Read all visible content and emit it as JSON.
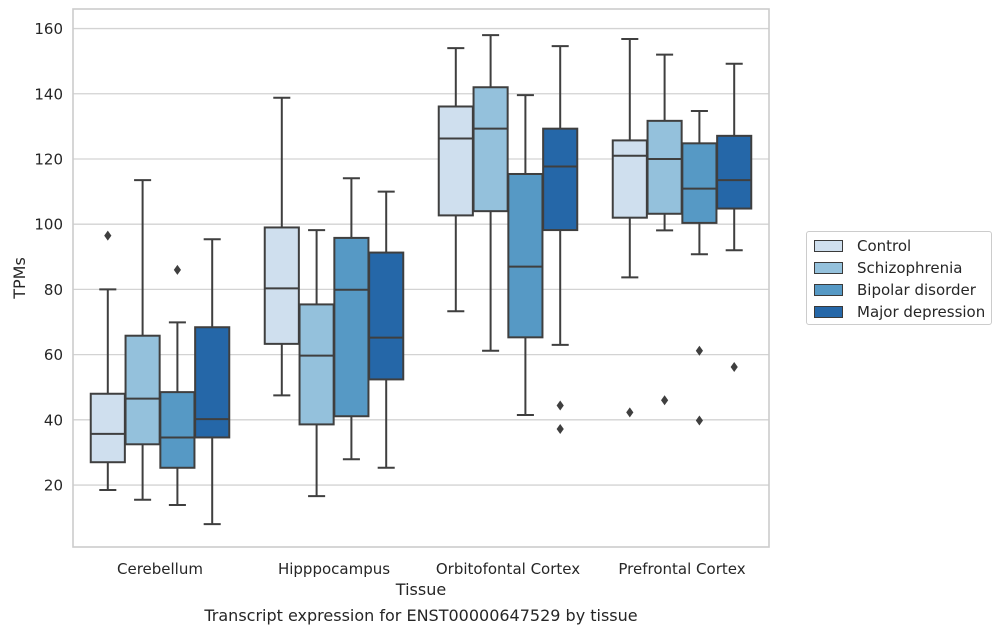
{
  "caption": "Transcript expression for ENST00000647529 by tissue",
  "chart_data": {
    "type": "box",
    "title": "",
    "xlabel": "Tissue",
    "ylabel": "TPMs",
    "categories": [
      "Cerebellum",
      "Hipppocampus",
      "Orbitofontal Cortex",
      "Prefrontal Cortex"
    ],
    "ylim": [
      1,
      166
    ],
    "yticks": [
      20,
      40,
      60,
      80,
      100,
      120,
      140,
      160
    ],
    "grid": true,
    "legend_position": "right",
    "series": [
      {
        "name": "Control",
        "color": "#cfdfee",
        "boxes": [
          {
            "q1": 27,
            "median": 35.7,
            "q3": 48,
            "whislo": 18.5,
            "whishi": 80,
            "fliers": [
              96.5
            ]
          },
          {
            "q1": 63.3,
            "median": 80.3,
            "q3": 99,
            "whislo": 47.5,
            "whishi": 138.8,
            "fliers": []
          },
          {
            "q1": 102.7,
            "median": 126.3,
            "q3": 136.1,
            "whislo": 73.3,
            "whishi": 154,
            "fliers": []
          },
          {
            "q1": 102,
            "median": 121,
            "q3": 125.7,
            "whislo": 83.7,
            "whishi": 156.8,
            "fliers": [
              42.3
            ]
          }
        ]
      },
      {
        "name": "Schizophrenia",
        "color": "#94c1dc",
        "boxes": [
          {
            "q1": 32.5,
            "median": 46.5,
            "q3": 65.8,
            "whislo": 15.5,
            "whishi": 113.5,
            "fliers": []
          },
          {
            "q1": 38.6,
            "median": 59.7,
            "q3": 75.4,
            "whislo": 16.6,
            "whishi": 98.2,
            "fliers": []
          },
          {
            "q1": 104,
            "median": 129.3,
            "q3": 142,
            "whislo": 61.2,
            "whishi": 158,
            "fliers": []
          },
          {
            "q1": 103.2,
            "median": 120,
            "q3": 131.7,
            "whislo": 98.1,
            "whishi": 152,
            "fliers": [
              46
            ]
          }
        ]
      },
      {
        "name": "Bipolar disorder",
        "color": "#5699c5",
        "boxes": [
          {
            "q1": 25.3,
            "median": 34.6,
            "q3": 48.5,
            "whislo": 13.9,
            "whishi": 69.9,
            "fliers": [
              86
            ]
          },
          {
            "q1": 41.1,
            "median": 79.9,
            "q3": 95.8,
            "whislo": 27.9,
            "whishi": 114.1,
            "fliers": []
          },
          {
            "q1": 65.3,
            "median": 87,
            "q3": 115.4,
            "whislo": 41.5,
            "whishi": 139.6,
            "fliers": []
          },
          {
            "q1": 100.4,
            "median": 110.9,
            "q3": 124.8,
            "whislo": 90.8,
            "whishi": 134.7,
            "fliers": [
              61.2,
              39.8
            ]
          }
        ]
      },
      {
        "name": "Major depression",
        "color": "#2567a8",
        "boxes": [
          {
            "q1": 34.6,
            "median": 40.2,
            "q3": 68.4,
            "whislo": 8,
            "whishi": 95.4,
            "fliers": []
          },
          {
            "q1": 52.4,
            "median": 65.2,
            "q3": 91.3,
            "whislo": 25.3,
            "whishi": 110,
            "fliers": []
          },
          {
            "q1": 98.2,
            "median": 117.7,
            "q3": 129.3,
            "whislo": 63,
            "whishi": 154.6,
            "fliers": [
              44.4,
              37.2
            ]
          },
          {
            "q1": 104.8,
            "median": 113.5,
            "q3": 127.1,
            "whislo": 92,
            "whishi": 149.2,
            "fliers": [
              56.2
            ]
          }
        ]
      }
    ]
  }
}
